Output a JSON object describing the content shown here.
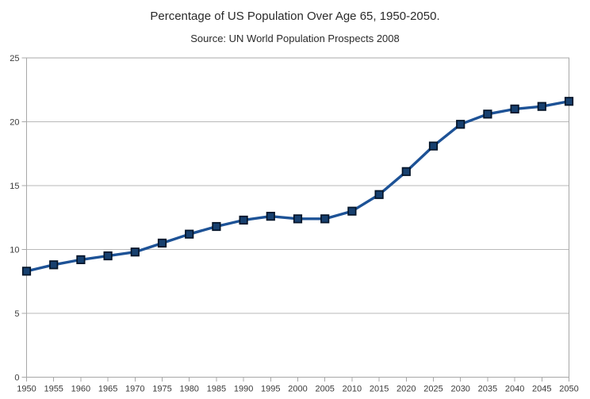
{
  "chart_data": {
    "type": "line",
    "title": "Percentage of US Population Over Age 65, 1950-2050.",
    "subtitle": "Source: UN World Population Prospects 2008",
    "x": [
      "1950",
      "1955",
      "1960",
      "1965",
      "1970",
      "1975",
      "1980",
      "1985",
      "1990",
      "1995",
      "2000",
      "2005",
      "2010",
      "2015",
      "2020",
      "2025",
      "2030",
      "2035",
      "2040",
      "2045",
      "2050"
    ],
    "values": [
      8.3,
      8.8,
      9.2,
      9.5,
      9.8,
      10.5,
      11.2,
      11.8,
      12.3,
      12.6,
      12.4,
      12.4,
      13.0,
      14.3,
      16.1,
      18.1,
      19.8,
      20.6,
      21.0,
      21.2,
      21.6
    ],
    "xlabel": "",
    "ylabel": "",
    "ylim": [
      0,
      25
    ],
    "yticks": [
      0,
      5,
      10,
      15,
      20,
      25
    ],
    "grid": "horizontal",
    "legend": "none",
    "marker": "square",
    "colors": {
      "line": "#1D5296",
      "marker_fill": "#17406F",
      "marker_border": "#041428",
      "grid": "#B9B9B9",
      "axis": "#A8A8A8",
      "title_text": "#2A2A2A",
      "tick_text": "#3C3C3C",
      "background": "#FFFFFF"
    }
  }
}
